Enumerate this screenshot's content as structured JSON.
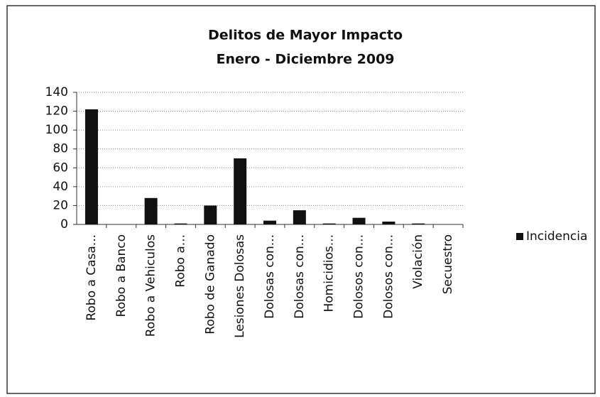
{
  "chart_data": {
    "type": "bar",
    "title": "Delitos de Mayor Impacto",
    "subtitle": "Enero - Diciembre 2009",
    "categories": [
      "Robo a Casa...",
      "Robo a Banco",
      "Robo a  Vehiculos",
      "Robo a...",
      "Robo de Ganado",
      "Lesiones Dolosas",
      "Dolosas con...",
      "Dolosas con...",
      "Homicidios...",
      "Dolosos con...",
      "Dolosos con...",
      "Violación",
      "Secuestro"
    ],
    "series": [
      {
        "name": "Incidencia",
        "color": "#111111",
        "values": [
          122,
          0,
          28,
          1,
          20,
          70,
          4,
          15,
          1,
          7,
          3,
          1,
          0
        ]
      }
    ],
    "ylim": [
      0,
      140
    ],
    "yticks": [
      0,
      20,
      40,
      60,
      80,
      100,
      120,
      140
    ],
    "grid": true,
    "legend": "right"
  }
}
